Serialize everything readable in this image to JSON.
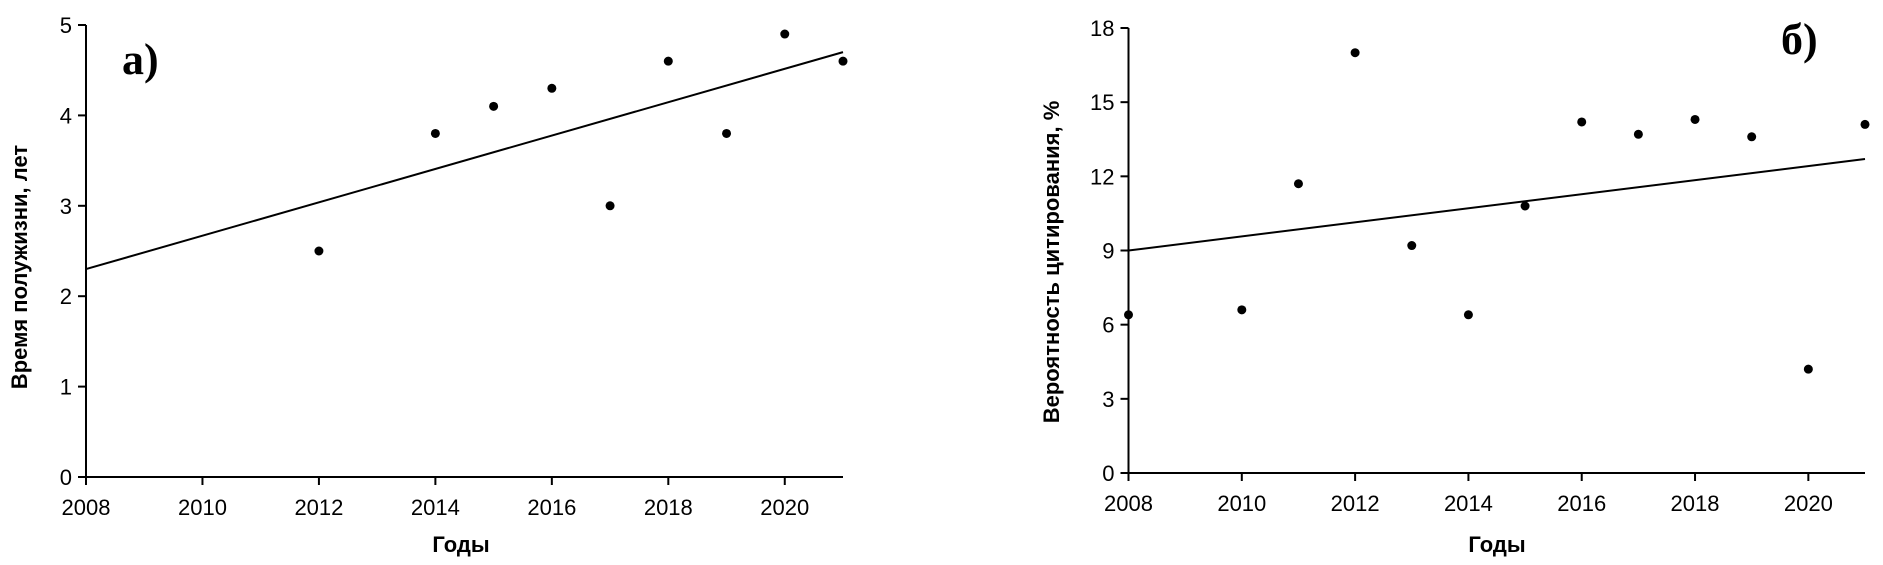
{
  "figure_background": "#ffffff",
  "colors": {
    "axis": "#000000",
    "marker": "#000000",
    "trendline": "#000000",
    "text": "#000000"
  },
  "chart_data": [
    {
      "type": "scatter",
      "panel_label": "а)",
      "xlabel": "Годы",
      "ylabel": "Время полужизни, лет",
      "xlim": [
        2008,
        2021
      ],
      "ylim": [
        0,
        5
      ],
      "x_ticks": [
        2008,
        2010,
        2012,
        2014,
        2016,
        2018,
        2020
      ],
      "y_ticks": [
        0,
        1,
        2,
        3,
        4,
        5
      ],
      "grid": false,
      "legend": false,
      "points": [
        [
          2012,
          2.5
        ],
        [
          2014,
          3.8
        ],
        [
          2015,
          4.1
        ],
        [
          2016,
          4.3
        ],
        [
          2017,
          3.0
        ],
        [
          2018,
          4.6
        ],
        [
          2019,
          3.8
        ],
        [
          2020,
          4.9
        ],
        [
          2021,
          4.6
        ]
      ],
      "trendline": {
        "x1": 2008,
        "y1": 2.3,
        "x2": 2021,
        "y2": 4.7
      }
    },
    {
      "type": "scatter",
      "panel_label": "б)",
      "xlabel": "Годы",
      "ylabel": "Вероятность цитирования, %",
      "xlim": [
        2008,
        2021
      ],
      "ylim": [
        0,
        18
      ],
      "x_ticks": [
        2008,
        2010,
        2012,
        2014,
        2016,
        2018,
        2020
      ],
      "y_ticks": [
        0,
        3,
        6,
        9,
        12,
        15,
        18
      ],
      "grid": false,
      "legend": false,
      "points": [
        [
          2008,
          6.4
        ],
        [
          2010,
          6.6
        ],
        [
          2011,
          11.7
        ],
        [
          2012,
          17.0
        ],
        [
          2013,
          9.2
        ],
        [
          2014,
          6.4
        ],
        [
          2015,
          10.8
        ],
        [
          2016,
          14.2
        ],
        [
          2017,
          13.7
        ],
        [
          2018,
          14.3
        ],
        [
          2019,
          13.6
        ],
        [
          2020,
          4.2
        ],
        [
          2021,
          14.1
        ]
      ],
      "trendline": {
        "x1": 2008,
        "y1": 9.0,
        "x2": 2021,
        "y2": 12.7
      }
    }
  ]
}
